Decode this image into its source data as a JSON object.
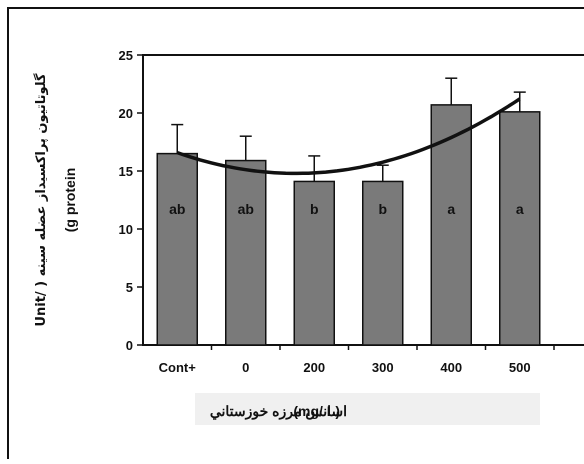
{
  "chart_data": {
    "type": "bar",
    "categories": [
      "Cont+",
      "0",
      "200",
      "300",
      "400",
      "500"
    ],
    "values": [
      16.5,
      15.9,
      14.1,
      14.1,
      20.7,
      20.1
    ],
    "error_upper": [
      19.0,
      18.0,
      16.3,
      15.5,
      23.0,
      21.8
    ],
    "significance_letters": [
      "ab",
      "ab",
      "b",
      "b",
      "a",
      "a"
    ],
    "yticks": [
      0,
      5,
      10,
      15,
      20,
      25
    ],
    "ylim": [
      0,
      25
    ],
    "xlabel_latin": "(mg/ L)",
    "xlabel_persian": "اسانس مرزه خوزستاني",
    "ylabel_line1": "گلوتاتيون پراكسيداز عضله سينه ( /Unit",
    "ylabel_line2": "(g protein",
    "trendline": {
      "type": "polynomial",
      "order": 2
    },
    "grid": false,
    "legend": "none",
    "colors": {
      "bar": "#7a7a7a",
      "bar_stroke": "#111111",
      "axis": "#111111",
      "trend": "#111111"
    }
  }
}
